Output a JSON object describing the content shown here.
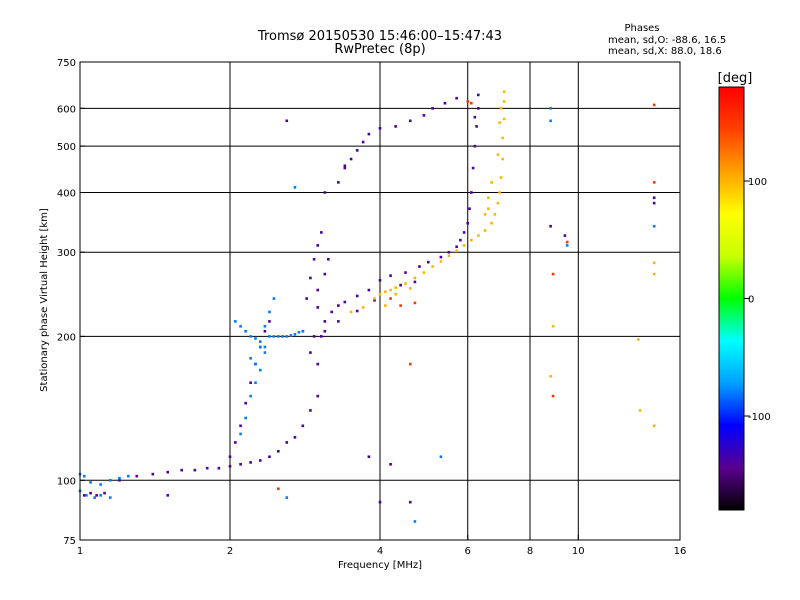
{
  "header": {
    "title_line1": "Tromsø 20150530 15:46:00–15:47:43",
    "title_line2": "RwPretec (8p)",
    "phase_heading": "Phases",
    "phase_o": "mean, sd,O: -88.6, 16.5",
    "phase_x": "mean, sd,X:  88.0, 18.6"
  },
  "chart_data": {
    "type": "scatter",
    "xlabel": "Frequency [MHz]",
    "ylabel": "Stationary phase Virtual Height [km]",
    "x_scale": "log",
    "y_scale": "log",
    "xlim": [
      1,
      16
    ],
    "ylim": [
      75,
      750
    ],
    "x_ticks": [
      1,
      2,
      4,
      6,
      8,
      10,
      16
    ],
    "y_ticks": [
      75,
      100,
      200,
      300,
      400,
      500,
      600,
      750
    ],
    "grid": true,
    "colorbar": {
      "label": "[deg]",
      "range": [
        -180,
        180
      ],
      "ticks": [
        100,
        0,
        -100
      ],
      "colors": [
        "#000000",
        "#5a0090",
        "#0000ff",
        "#00a0ff",
        "#00ffff",
        "#00ff00",
        "#c8ff00",
        "#ffff00",
        "#ffa000",
        "#ff4000",
        "#ff0000"
      ]
    },
    "series": [
      {
        "phase": -140,
        "points": [
          [
            1.02,
            93
          ],
          [
            1.05,
            94
          ],
          [
            1.08,
            93
          ],
          [
            1.12,
            94
          ],
          [
            1.2,
            100
          ],
          [
            1.3,
            102
          ],
          [
            1.4,
            103
          ],
          [
            1.5,
            104
          ],
          [
            1.6,
            105
          ],
          [
            1.7,
            105
          ],
          [
            1.8,
            106
          ],
          [
            1.9,
            106
          ],
          [
            2.0,
            107
          ],
          [
            2.1,
            108
          ],
          [
            2.2,
            109
          ],
          [
            2.3,
            110
          ],
          [
            2.4,
            112
          ],
          [
            2.5,
            115
          ],
          [
            2.6,
            120
          ],
          [
            2.7,
            123
          ],
          [
            2.8,
            130
          ],
          [
            2.9,
            140
          ],
          [
            3.0,
            150
          ],
          [
            3.0,
            175
          ],
          [
            3.05,
            200
          ],
          [
            3.1,
            215
          ],
          [
            3.2,
            225
          ],
          [
            3.3,
            232
          ],
          [
            3.4,
            236
          ],
          [
            3.6,
            243
          ],
          [
            3.8,
            250
          ],
          [
            4.0,
            262
          ],
          [
            4.2,
            268
          ],
          [
            4.5,
            272
          ],
          [
            4.8,
            280
          ],
          [
            5.0,
            286
          ],
          [
            5.3,
            293
          ],
          [
            5.5,
            300
          ],
          [
            5.7,
            308
          ],
          [
            5.8,
            318
          ],
          [
            5.9,
            330
          ],
          [
            6.0,
            345
          ],
          [
            6.05,
            370
          ],
          [
            6.1,
            400
          ],
          [
            6.15,
            450
          ],
          [
            6.2,
            500
          ],
          [
            6.25,
            550
          ],
          [
            6.3,
            600
          ],
          [
            6.3,
            640
          ],
          [
            2.0,
            112
          ],
          [
            2.05,
            120
          ],
          [
            2.1,
            130
          ],
          [
            2.15,
            145
          ],
          [
            2.2,
            160
          ],
          [
            2.25,
            175
          ],
          [
            2.3,
            190
          ],
          [
            2.35,
            205
          ],
          [
            2.4,
            215
          ],
          [
            2.8,
            205
          ],
          [
            2.85,
            240
          ],
          [
            2.9,
            265
          ],
          [
            2.95,
            290
          ],
          [
            3.0,
            310
          ],
          [
            3.05,
            330
          ],
          [
            2.95,
            200
          ],
          [
            3.0,
            230
          ],
          [
            3.1,
            270
          ],
          [
            3.15,
            290
          ],
          [
            2.9,
            185
          ],
          [
            3.0,
            250
          ],
          [
            3.3,
            420
          ],
          [
            3.4,
            450
          ],
          [
            3.5,
            470
          ],
          [
            3.6,
            490
          ],
          [
            3.7,
            510
          ],
          [
            3.8,
            530
          ],
          [
            4.0,
            545
          ],
          [
            4.3,
            550
          ],
          [
            4.6,
            565
          ],
          [
            4.9,
            580
          ],
          [
            5.1,
            600
          ],
          [
            5.4,
            615
          ],
          [
            5.7,
            630
          ],
          [
            6.2,
            575
          ],
          [
            4.7,
            260
          ],
          [
            4.4,
            256
          ],
          [
            3.9,
            238
          ],
          [
            3.6,
            226
          ],
          [
            3.3,
            215
          ],
          [
            3.1,
            205
          ],
          [
            1.5,
            93
          ],
          [
            2.6,
            565
          ],
          [
            3.1,
            400
          ],
          [
            3.4,
            455
          ],
          [
            4.2,
            108
          ],
          [
            4.6,
            90
          ],
          [
            8.8,
            340
          ],
          [
            9.4,
            325
          ],
          [
            14.2,
            390
          ],
          [
            14.2,
            380
          ],
          [
            4.0,
            90
          ],
          [
            3.8,
            112
          ]
        ]
      },
      {
        "phase": -80,
        "points": [
          [
            1.0,
            103
          ],
          [
            1.02,
            102
          ],
          [
            1.05,
            99
          ],
          [
            1.1,
            98
          ],
          [
            1.15,
            100
          ],
          [
            1.2,
            101
          ],
          [
            1.25,
            102
          ],
          [
            1.0,
            95
          ],
          [
            1.03,
            93
          ],
          [
            1.07,
            92
          ],
          [
            1.1,
            93
          ],
          [
            1.15,
            92
          ],
          [
            2.05,
            215
          ],
          [
            2.1,
            210
          ],
          [
            2.15,
            205
          ],
          [
            2.2,
            200
          ],
          [
            2.25,
            198
          ],
          [
            2.3,
            195
          ],
          [
            2.35,
            190
          ],
          [
            2.4,
            200
          ],
          [
            2.45,
            200
          ],
          [
            2.5,
            200
          ],
          [
            2.55,
            200
          ],
          [
            2.6,
            200
          ],
          [
            2.65,
            201
          ],
          [
            2.7,
            202
          ],
          [
            2.75,
            204
          ],
          [
            2.8,
            205
          ],
          [
            2.2,
            180
          ],
          [
            2.25,
            175
          ],
          [
            2.3,
            190
          ],
          [
            2.35,
            210
          ],
          [
            2.4,
            225
          ],
          [
            2.45,
            240
          ],
          [
            2.3,
            170
          ],
          [
            2.35,
            185
          ],
          [
            2.2,
            150
          ],
          [
            2.25,
            160
          ],
          [
            2.15,
            135
          ],
          [
            2.1,
            125
          ],
          [
            2.6,
            92
          ],
          [
            2.7,
            410
          ],
          [
            8.8,
            565
          ],
          [
            8.8,
            600
          ],
          [
            9.5,
            310
          ],
          [
            14.2,
            340
          ],
          [
            4.7,
            82
          ],
          [
            5.3,
            112
          ]
        ]
      },
      {
        "phase": 100,
        "points": [
          [
            4.0,
            245
          ],
          [
            4.1,
            248
          ],
          [
            4.2,
            250
          ],
          [
            4.3,
            253
          ],
          [
            4.5,
            258
          ],
          [
            4.7,
            265
          ],
          [
            4.9,
            272
          ],
          [
            5.1,
            280
          ],
          [
            5.3,
            287
          ],
          [
            5.5,
            295
          ],
          [
            5.7,
            302
          ],
          [
            5.9,
            310
          ],
          [
            6.1,
            318
          ],
          [
            6.3,
            325
          ],
          [
            6.5,
            333
          ],
          [
            6.7,
            345
          ],
          [
            6.8,
            360
          ],
          [
            6.9,
            380
          ],
          [
            6.95,
            400
          ],
          [
            7.0,
            430
          ],
          [
            7.05,
            470
          ],
          [
            7.05,
            520
          ],
          [
            7.1,
            570
          ],
          [
            7.1,
            620
          ],
          [
            7.1,
            650
          ],
          [
            6.9,
            480
          ],
          [
            6.95,
            560
          ],
          [
            7.0,
            600
          ],
          [
            3.9,
            240
          ],
          [
            4.1,
            232
          ],
          [
            4.3,
            245
          ],
          [
            4.6,
            252
          ],
          [
            6.6,
            390
          ],
          [
            6.7,
            420
          ],
          [
            6.5,
            360
          ],
          [
            6.6,
            370
          ],
          [
            3.5,
            225
          ],
          [
            3.7,
            230
          ],
          [
            8.9,
            210
          ],
          [
            14.2,
            270
          ],
          [
            14.2,
            285
          ],
          [
            14.2,
            130
          ],
          [
            13.2,
            197
          ],
          [
            13.3,
            140
          ],
          [
            8.8,
            165
          ]
        ]
      },
      {
        "phase": 150,
        "points": [
          [
            4.2,
            240
          ],
          [
            4.4,
            232
          ],
          [
            4.7,
            235
          ],
          [
            6.0,
            620
          ],
          [
            6.1,
            615
          ],
          [
            8.9,
            270
          ],
          [
            8.9,
            150
          ],
          [
            14.2,
            610
          ],
          [
            14.2,
            420
          ],
          [
            4.6,
            175
          ],
          [
            9.5,
            315
          ],
          [
            2.5,
            96
          ]
        ]
      }
    ]
  }
}
